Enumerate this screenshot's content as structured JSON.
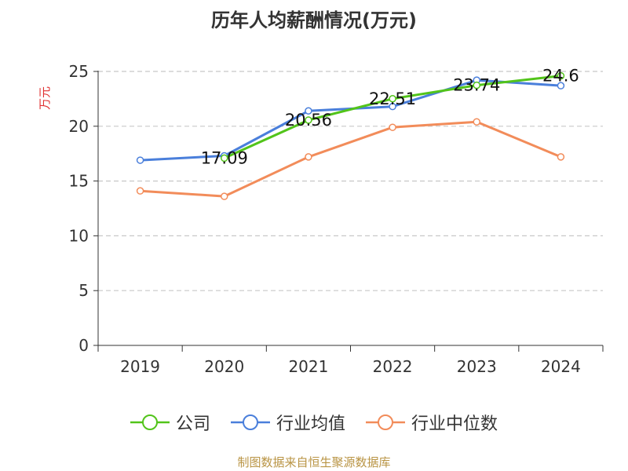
{
  "chart_data": {
    "type": "line",
    "title": "历年人均薪酬情况(万元)",
    "ylabel": "万元",
    "xlabel": "",
    "categories": [
      "2019",
      "2020",
      "2021",
      "2022",
      "2023",
      "2024"
    ],
    "ylim": [
      0,
      25
    ],
    "yticks": [
      0,
      5,
      10,
      15,
      20,
      25
    ],
    "grid": true,
    "legend_position": "bottom",
    "series": [
      {
        "name": "公司",
        "color": "#52c41a",
        "values": [
          null,
          17.09,
          20.56,
          22.51,
          23.74,
          24.6
        ],
        "labels": [
          "",
          "17.09",
          "20.56",
          "22.51",
          "23.74",
          "24.6"
        ]
      },
      {
        "name": "行业均值",
        "color": "#4a7fdb",
        "values": [
          16.9,
          17.3,
          21.4,
          21.8,
          24.2,
          23.7
        ]
      },
      {
        "name": "行业中位数",
        "color": "#f28c5a",
        "values": [
          14.1,
          13.6,
          17.2,
          19.9,
          20.4,
          17.2
        ]
      }
    ]
  },
  "footer": {
    "source": "制图数据来自恒生聚源数据库"
  }
}
